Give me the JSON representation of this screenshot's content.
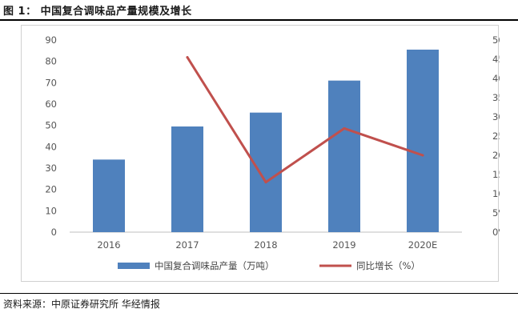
{
  "figure_title": "图 1：   中国复合调味品产量规模及增长",
  "source": "资料来源：中原证券研究所 华经情报",
  "colors": {
    "bar": "#4f81bd",
    "line": "#c0504d",
    "axis": "#bfbfbf"
  },
  "chart_data": {
    "type": "bar",
    "title": "",
    "categories": [
      "2016",
      "2017",
      "2018",
      "2019",
      "2020E"
    ],
    "series": [
      {
        "name": "中国复合调味品产量（万吨）",
        "type": "bar",
        "axis": "left",
        "values": [
          34.0,
          49.5,
          56.0,
          71.0,
          85.5
        ]
      },
      {
        "name": "同比增长（%）",
        "type": "line",
        "axis": "right",
        "values": [
          null,
          45.5,
          13.0,
          27.0,
          20.0
        ]
      }
    ],
    "left_axis": {
      "min": 0,
      "max": 90,
      "ticks": [
        "0",
        "10",
        "20",
        "30",
        "40",
        "50",
        "60",
        "70",
        "80",
        "90"
      ]
    },
    "right_axis": {
      "min": 0,
      "max": 50,
      "ticks": [
        "0%",
        "5%",
        "10%",
        "15%",
        "20%",
        "25%",
        "30%",
        "35%",
        "40%",
        "45%",
        "50%"
      ]
    },
    "grid": false,
    "legend": "bottom"
  }
}
